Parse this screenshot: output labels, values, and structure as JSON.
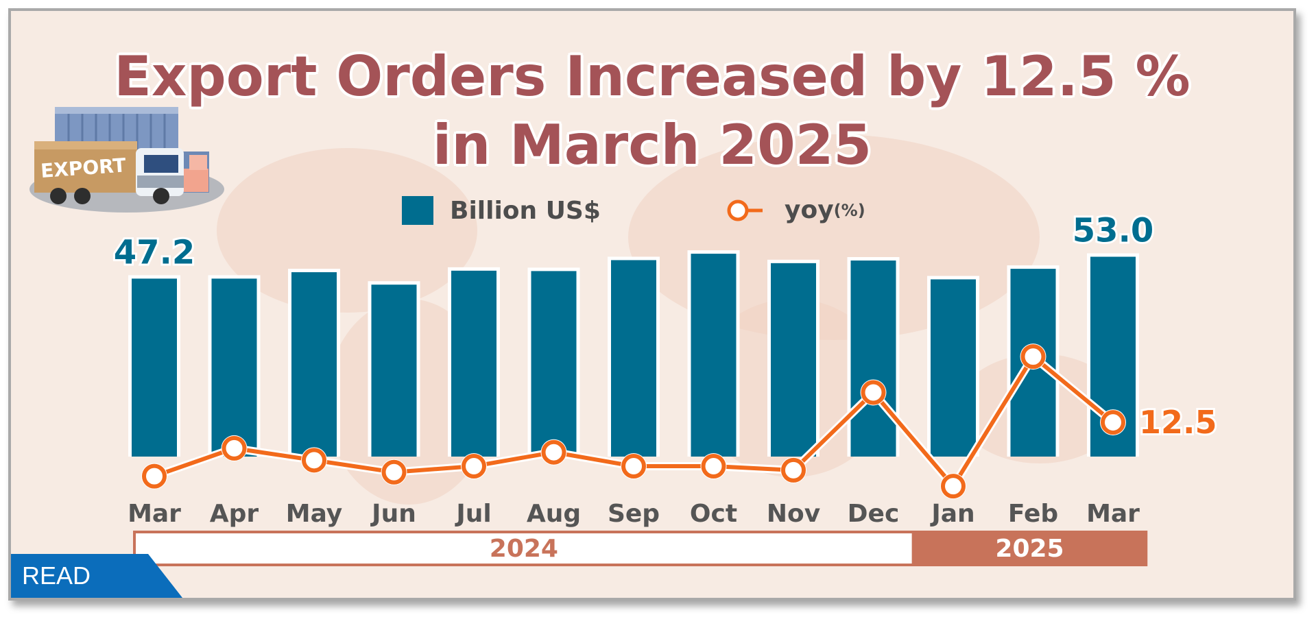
{
  "title": "Export Orders Increased by 12.5 % in March 2025",
  "legend": {
    "bar_label": "Billion US$",
    "line_label": "yoy",
    "line_unit": "(%)"
  },
  "read_badge": "READ",
  "truck_label": "EXPORT",
  "colors": {
    "bar": "#006d8f",
    "line": "#f26a1b",
    "title": "#a45357",
    "year_band": "#c8735a",
    "background": "#f7ebe3"
  },
  "chart_data": {
    "type": "bar",
    "categories": [
      "Mar",
      "Apr",
      "May",
      "Jun",
      "Jul",
      "Aug",
      "Sep",
      "Oct",
      "Nov",
      "Dec",
      "Jan",
      "Feb",
      "Mar"
    ],
    "year_groups": [
      {
        "label": "2024",
        "start": 0,
        "end": 9
      },
      {
        "label": "2025",
        "start": 10,
        "end": 12
      }
    ],
    "series": [
      {
        "name": "Billion US$",
        "type": "bar",
        "values": [
          47.2,
          47.2,
          48.9,
          45.6,
          49.3,
          49.2,
          52.1,
          53.8,
          51.3,
          52.0,
          47.0,
          49.8,
          53.0
        ],
        "labeled": {
          "0": "47.2",
          "12": "53.0"
        }
      },
      {
        "name": "yoy(%)",
        "type": "line",
        "values": [
          -1.0,
          6.0,
          3.0,
          0.0,
          1.5,
          5.0,
          1.5,
          1.5,
          0.5,
          20.0,
          -3.5,
          29.0,
          12.5
        ],
        "labeled": {
          "12": "12.5"
        }
      }
    ],
    "ylim": [
      0,
      60
    ],
    "y2lim": [
      -15,
      50
    ],
    "grid": false,
    "legend_position": "top-center"
  }
}
